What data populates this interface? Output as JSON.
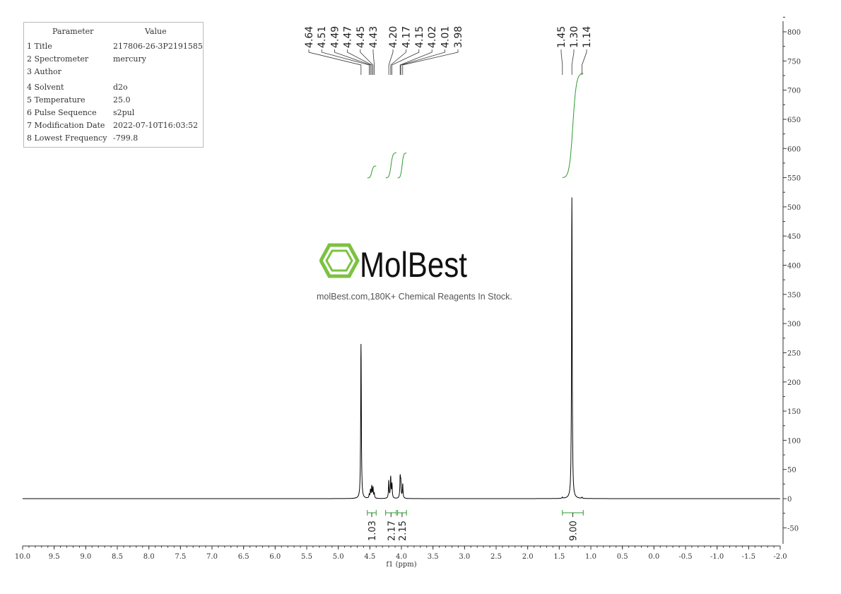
{
  "parameters": {
    "header": [
      "Parameter",
      "Value"
    ],
    "rows": [
      {
        "name": "1 Title",
        "value": "217806-26-3P2191585"
      },
      {
        "name": "2 Spectrometer",
        "value": "mercury"
      },
      {
        "name": "3 Author",
        "value": ""
      },
      {
        "name": "4 Solvent",
        "value": "d2o"
      },
      {
        "name": "5 Temperature",
        "value": "25.0"
      },
      {
        "name": "6 Pulse Sequence",
        "value": "s2pul"
      },
      {
        "name": "7 Modification Date",
        "value": "2022-07-10T16:03:52"
      },
      {
        "name": "8 Lowest Frequency",
        "value": "-799.8"
      }
    ]
  },
  "watermark": {
    "brand": "MolBest",
    "tagline": "molBest.com,180K+ Chemical Reagents In Stock."
  },
  "chart_data": {
    "type": "line",
    "xlabel": "f1 (ppm)",
    "xlim": [
      10.0,
      -2.0
    ],
    "ylim": [
      -75,
      820
    ],
    "x_ticks": [
      "10.0",
      "9.5",
      "9.0",
      "8.5",
      "8.0",
      "7.5",
      "7.0",
      "6.5",
      "6.0",
      "5.5",
      "5.0",
      "4.5",
      "4.0",
      "3.5",
      "3.0",
      "2.5",
      "2.0",
      "1.5",
      "1.0",
      "0.5",
      "0.0",
      "-0.5",
      "-1.0",
      "-1.5",
      "-2.0"
    ],
    "y_ticks": [
      "800",
      "750",
      "700",
      "650",
      "600",
      "550",
      "500",
      "450",
      "400",
      "350",
      "300",
      "250",
      "200",
      "150",
      "100",
      "50",
      "0",
      "-50"
    ],
    "line_color": "#000000",
    "integral_color": "#2e9a2e",
    "peaks": [
      {
        "ppm": 4.64,
        "height": 265
      },
      {
        "ppm": 4.51,
        "height": 6
      },
      {
        "ppm": 4.49,
        "height": 14
      },
      {
        "ppm": 4.47,
        "height": 20
      },
      {
        "ppm": 4.45,
        "height": 18
      },
      {
        "ppm": 4.43,
        "height": 8
      },
      {
        "ppm": 4.2,
        "height": 30
      },
      {
        "ppm": 4.17,
        "height": 36
      },
      {
        "ppm": 4.15,
        "height": 24
      },
      {
        "ppm": 4.02,
        "height": 34
      },
      {
        "ppm": 4.01,
        "height": 26
      },
      {
        "ppm": 3.98,
        "height": 24
      },
      {
        "ppm": 1.45,
        "height": 2
      },
      {
        "ppm": 1.3,
        "height": 516
      },
      {
        "ppm": 1.14,
        "height": 2
      }
    ],
    "peak_labels_left": [
      "4.64",
      "4.51",
      "4.49",
      "4.47",
      "4.45",
      "4.43",
      "4.20",
      "4.17",
      "4.15",
      "4.02",
      "4.01",
      "3.98"
    ],
    "peak_labels_right": [
      "1.45",
      "1.30",
      "1.14"
    ],
    "integrals": [
      {
        "from": 4.54,
        "to": 4.4,
        "value": "1.03"
      },
      {
        "from": 4.25,
        "to": 4.08,
        "value": "2.17"
      },
      {
        "from": 4.06,
        "to": 3.92,
        "value": "2.15"
      },
      {
        "from": 1.45,
        "to": 1.12,
        "value": "9.00"
      }
    ]
  }
}
